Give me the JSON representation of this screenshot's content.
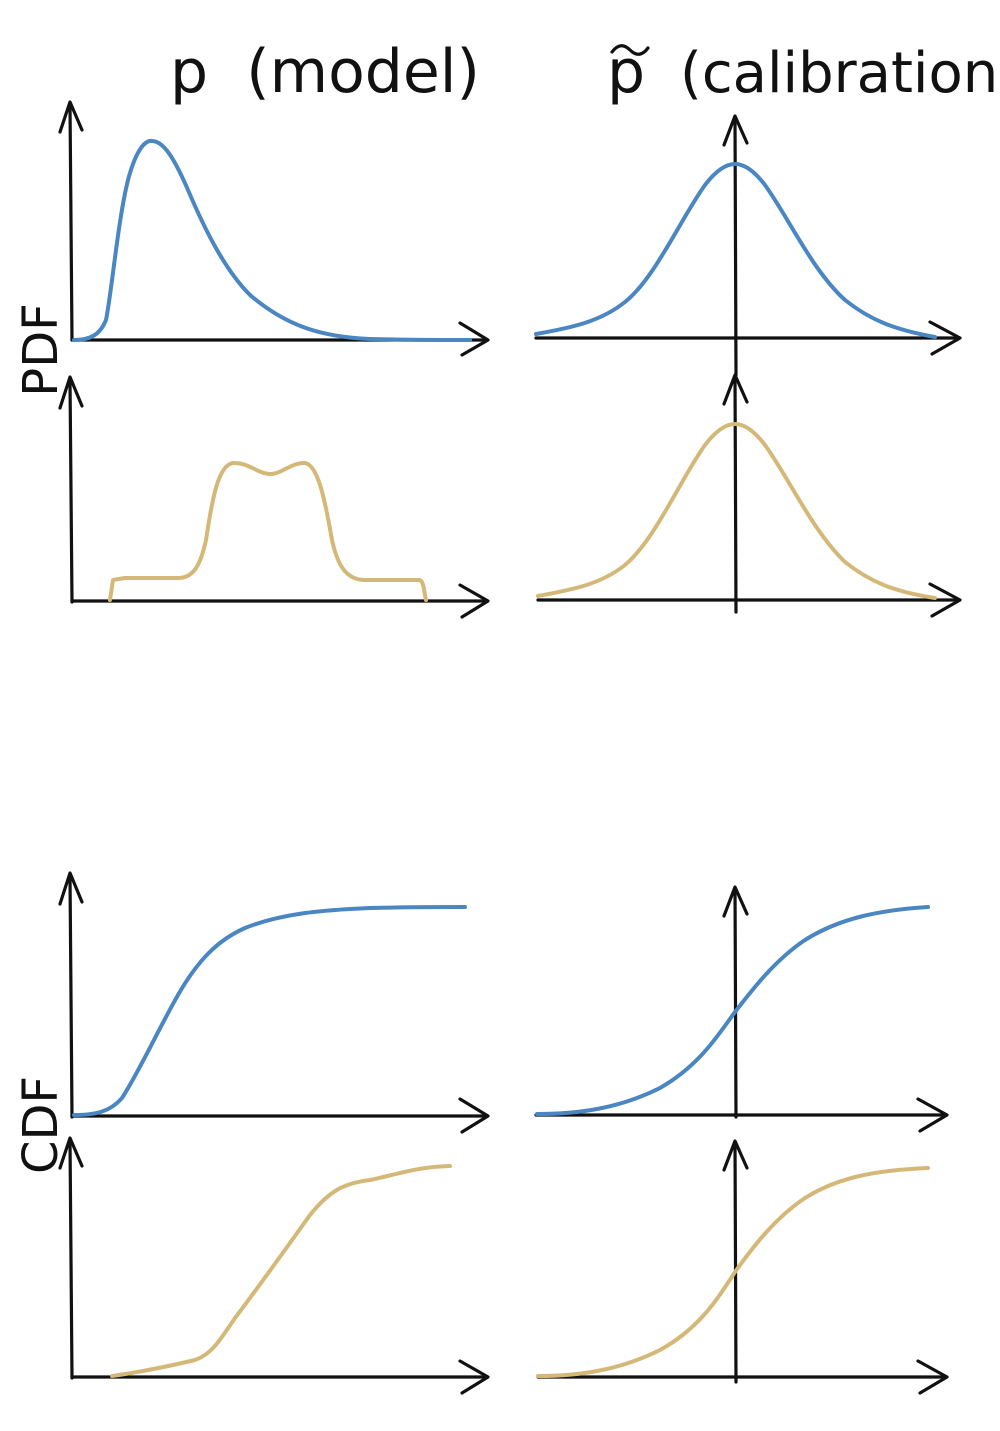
{
  "header": {
    "model_title": "p  (model)",
    "calibration_symbol": "p",
    "calibration_title": "(calibration)"
  },
  "row_labels": {
    "pdf": "PDF",
    "cdf": "CDF"
  },
  "colors": {
    "series_blue": "#4a86c2",
    "series_tan": "#d4b878",
    "axis": "#111111",
    "background": "#ffffff"
  },
  "panels": [
    {
      "row": "pdf",
      "column": "model",
      "color": "blue",
      "shape": "right-skewed peak"
    },
    {
      "row": "pdf",
      "column": "calibration",
      "color": "blue",
      "shape": "bell curve"
    },
    {
      "row": "pdf",
      "column": "model",
      "color": "tan",
      "shape": "bimodal plateau"
    },
    {
      "row": "pdf",
      "column": "calibration",
      "color": "tan",
      "shape": "bell curve"
    },
    {
      "row": "cdf",
      "column": "model",
      "color": "blue",
      "shape": "s-curve"
    },
    {
      "row": "cdf",
      "column": "calibration",
      "color": "blue",
      "shape": "s-curve"
    },
    {
      "row": "cdf",
      "column": "model",
      "color": "tan",
      "shape": "s-curve"
    },
    {
      "row": "cdf",
      "column": "calibration",
      "color": "tan",
      "shape": "s-curve"
    }
  ]
}
